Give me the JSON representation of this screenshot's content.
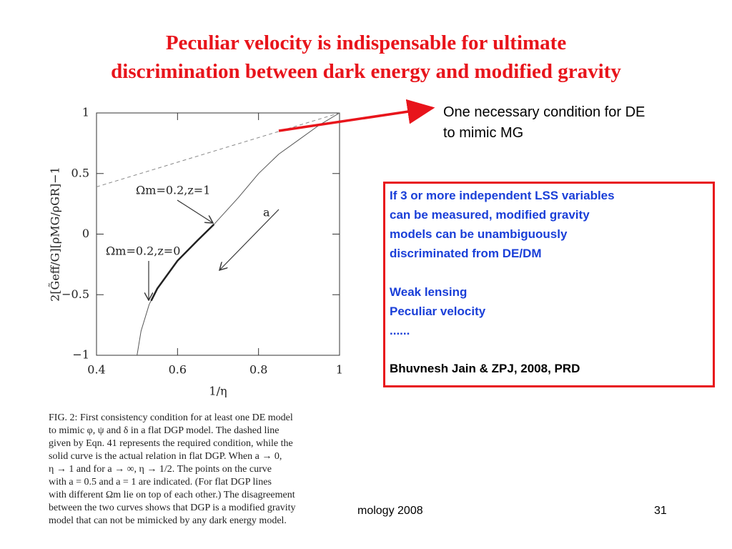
{
  "title": [
    "Peculiar velocity is indispensable for ultimate",
    "discrimination between dark energy and modified gravity"
  ],
  "chart_data": {
    "type": "line",
    "x_label": "1/η",
    "y_label": "2[G̃eff/G][ρMG/ρGR]−1",
    "xlim": [
      0.4,
      1
    ],
    "ylim": [
      -1,
      1
    ],
    "xticks": [
      0.4,
      0.6,
      0.8,
      1
    ],
    "yticks": [
      {
        "value": -1,
        "label": "−1"
      },
      {
        "value": -0.5,
        "label": "−0.5"
      },
      0,
      0.5,
      1
    ],
    "series": [
      {
        "color": "#888888",
        "style": "dashed",
        "width": 1,
        "x": [
          0.4,
          1
        ],
        "values": [
          0.39,
          1
        ]
      },
      {
        "color": "#555555",
        "style": "solid",
        "width": 1,
        "x": [
          0.5,
          0.51,
          0.53,
          0.55,
          0.6,
          0.65,
          0.69,
          0.75,
          0.8,
          0.85,
          0.9,
          0.95,
          1
        ],
        "values": [
          -1,
          -0.8,
          -0.58,
          -0.45,
          -0.22,
          -0.05,
          0.08,
          0.3,
          0.5,
          0.66,
          0.78,
          0.9,
          1
        ]
      },
      {
        "color": "#222222",
        "style": "solid",
        "width": 2.5,
        "x": [
          0.535,
          0.55,
          0.6,
          0.65,
          0.69
        ],
        "values": [
          -0.55,
          -0.45,
          -0.22,
          -0.05,
          0.08
        ]
      }
    ],
    "annotations": [
      "Ωm=0.2,z=1",
      "Ωm=0.2,z=0",
      "a"
    ]
  },
  "note": [
    "One necessary condition for DE",
    "to mimic MG"
  ],
  "box": {
    "points": [
      "If 3 or more independent  LSS variables",
      "can be measured,  modified gravity",
      "models can be unambiguously",
      "discriminated from DE/DM"
    ],
    "list": [
      "Weak lensing",
      "Peculiar velocity",
      "......"
    ],
    "reference": "Bhuvnesh Jain & ZPJ, 2008, PRD"
  },
  "caption": [
    "FIG. 2: First consistency condition for at least one DE model",
    "to mimic φ, ψ and δ in a flat DGP model.  The dashed line",
    "given by Eqn. 41 represents the required condition, while the",
    "solid curve is the actual relation in flat DGP. When a → 0,",
    "η → 1 and for a → ∞, η → 1/2.  The points on the curve",
    "with a = 0.5 and a = 1 are indicated.  (For flat DGP lines",
    "with different Ωm lie on top of each other.)  The disagreement",
    "between the two curves shows that DGP is a modified gravity",
    "model that can not be mimicked by any dark energy model."
  ],
  "footer": {
    "event": "mology 2008",
    "page": "31"
  }
}
